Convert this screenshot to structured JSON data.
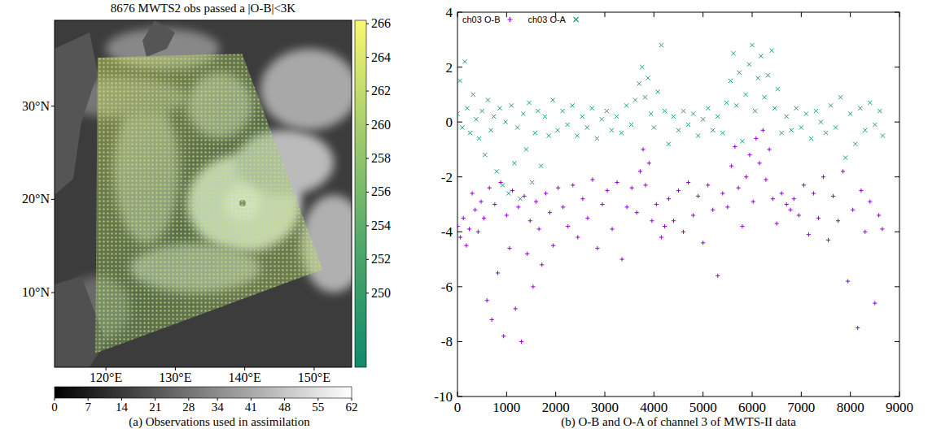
{
  "chart_data": [
    {
      "type": "map",
      "title": "8676 MWTS2 obs passed a |O-B|<3K",
      "caption": "(a) Observations used in assimilation",
      "xlim": [
        112.6,
        155.4
      ],
      "ylim": [
        2,
        39.2
      ],
      "xticks": [
        {
          "value": 120,
          "label": "120°E"
        },
        {
          "value": 130,
          "label": "130°E"
        },
        {
          "value": 140,
          "label": "140°E"
        },
        {
          "value": 150,
          "label": "150°E"
        }
      ],
      "yticks": [
        {
          "value": 10,
          "label": "10°N"
        },
        {
          "value": 20,
          "label": "20°N"
        },
        {
          "value": 30,
          "label": "30°N"
        }
      ],
      "swath": {
        "lon": [
          118.8,
          139.6,
          151.2,
          118.5
        ],
        "lat": [
          35.2,
          35.6,
          12.5,
          3.5
        ]
      },
      "colorbar": {
        "ylim": [
          245.6,
          266.2
        ],
        "yticks": [
          250,
          252,
          254,
          256,
          258,
          260,
          262,
          264,
          266
        ]
      },
      "image_colorbar": {
        "xlim": [
          0,
          62
        ],
        "xticks": [
          0,
          7,
          14,
          21,
          28,
          34,
          41,
          48,
          55,
          62
        ]
      }
    },
    {
      "type": "scatter",
      "caption": "(b) O-B and O-A of channel 3 of MWTS-II data",
      "xlim": [
        0,
        9000
      ],
      "ylim": [
        -10,
        4
      ],
      "xticks": [
        0,
        1000,
        2000,
        3000,
        4000,
        5000,
        6000,
        7000,
        8000,
        9000
      ],
      "yticks": [
        -10,
        -8,
        -6,
        -4,
        -2,
        0,
        2,
        4
      ],
      "legend": "upper left",
      "series": [
        {
          "name": "ch03 O-B",
          "color": "#9400d3",
          "marker": "plus",
          "x": [
            0,
            60,
            120,
            180,
            240,
            300,
            360,
            420,
            480,
            540,
            600,
            650,
            700,
            760,
            820,
            880,
            940,
            1000,
            1060,
            1120,
            1180,
            1240,
            1300,
            1360,
            1420,
            1480,
            1540,
            1600,
            1660,
            1720,
            1800,
            1880,
            1950,
            2050,
            2150,
            2250,
            2350,
            2450,
            2550,
            2650,
            2750,
            2850,
            2950,
            3050,
            3150,
            3250,
            3350,
            3450,
            3550,
            3650,
            3720,
            3780,
            3830,
            3900,
            3960,
            4050,
            4150,
            4220,
            4300,
            4400,
            4500,
            4600,
            4700,
            4800,
            4900,
            5000,
            5100,
            5200,
            5300,
            5400,
            5500,
            5580,
            5650,
            5720,
            5800,
            5880,
            5950,
            6020,
            6080,
            6150,
            6220,
            6280,
            6350,
            6420,
            6500,
            6600,
            6700,
            6780,
            6850,
            6950,
            7050,
            7150,
            7250,
            7350,
            7450,
            7550,
            7650,
            7750,
            7850,
            7950,
            8050,
            8150,
            8220,
            8300,
            8400,
            8500,
            8580,
            8650
          ],
          "values": [
            -3.8,
            -4.2,
            -3.5,
            -4.5,
            -3.9,
            -2.6,
            -3.2,
            -4.0,
            -2.9,
            -3.5,
            -6.5,
            -2.4,
            -7.2,
            -3.0,
            -5.5,
            -2.2,
            -7.8,
            -3.4,
            -4.6,
            -2.5,
            -6.8,
            -3.1,
            -8.0,
            -2.7,
            -4.8,
            -3.6,
            -6.0,
            -2.9,
            -3.9,
            -5.2,
            -2.6,
            -3.3,
            -4.5,
            -2.4,
            -3.1,
            -3.8,
            -2.3,
            -4.2,
            -2.8,
            -3.5,
            -2.1,
            -4.6,
            -3.0,
            -2.5,
            -3.9,
            -2.2,
            -5.0,
            -3.1,
            -2.4,
            -3.3,
            -1.8,
            -1.0,
            -2.3,
            -1.5,
            -3.6,
            -3.0,
            -4.2,
            -3.8,
            -2.8,
            -3.6,
            -2.5,
            -4.0,
            -2.2,
            -3.4,
            -2.7,
            -4.4,
            -2.3,
            -3.2,
            -5.6,
            -2.6,
            -3.1,
            -1.6,
            -0.9,
            -2.4,
            -3.8,
            -2.0,
            -1.2,
            -2.9,
            -0.6,
            -1.5,
            -0.3,
            -2.1,
            -1.0,
            -2.8,
            -3.7,
            -2.6,
            -3.0,
            -3.2,
            -2.8,
            -3.4,
            -2.3,
            -4.1,
            -2.6,
            -3.5,
            -2.0,
            -4.3,
            -2.7,
            -3.6,
            -1.8,
            -5.8,
            -3.2,
            -7.5,
            -2.5,
            -4.0,
            -2.9,
            -6.6,
            -3.4,
            -3.9
          ]
        },
        {
          "name": "ch03 O-A",
          "color": "#1a9e77",
          "marker": "x",
          "x": [
            0,
            50,
            100,
            150,
            200,
            260,
            320,
            380,
            440,
            500,
            560,
            620,
            680,
            740,
            800,
            860,
            920,
            980,
            1040,
            1100,
            1160,
            1220,
            1280,
            1340,
            1400,
            1460,
            1520,
            1580,
            1640,
            1700,
            1780,
            1860,
            1940,
            2040,
            2140,
            2240,
            2340,
            2440,
            2540,
            2640,
            2740,
            2840,
            2940,
            3040,
            3140,
            3240,
            3340,
            3440,
            3540,
            3620,
            3700,
            3760,
            3820,
            3880,
            3940,
            4000,
            4080,
            4150,
            4220,
            4300,
            4400,
            4500,
            4600,
            4700,
            4800,
            4900,
            5000,
            5100,
            5200,
            5300,
            5400,
            5480,
            5560,
            5620,
            5680,
            5740,
            5800,
            5870,
            5940,
            6000,
            6060,
            6120,
            6180,
            6250,
            6320,
            6400,
            6460,
            6520,
            6600,
            6700,
            6800,
            6900,
            7000,
            7100,
            7200,
            7300,
            7400,
            7500,
            7600,
            7700,
            7800,
            7900,
            8000,
            8100,
            8200,
            8300,
            8400,
            8500,
            8600,
            8660
          ],
          "values": [
            0.3,
            1.5,
            -0.2,
            2.2,
            0.5,
            -0.4,
            1.0,
            0.1,
            -0.6,
            0.4,
            -1.2,
            0.8,
            -0.3,
            0.2,
            -1.8,
            0.5,
            -2.3,
            0.0,
            -2.6,
            0.6,
            -1.5,
            -0.2,
            -2.8,
            0.3,
            -1.0,
            0.7,
            -2.2,
            -0.4,
            0.4,
            -1.6,
            0.2,
            -0.5,
            0.8,
            -0.3,
            0.4,
            -0.1,
            0.6,
            -0.5,
            0.2,
            -0.2,
            0.5,
            -0.6,
            0.1,
            0.4,
            -0.3,
            0.2,
            -0.4,
            0.6,
            -0.1,
            0.8,
            1.4,
            2.0,
            0.9,
            1.6,
            0.3,
            -0.2,
            1.1,
            2.8,
            0.4,
            -0.8,
            0.2,
            -0.3,
            0.4,
            -0.1,
            0.3,
            -0.5,
            0.1,
            0.5,
            -0.3,
            0.2,
            -0.4,
            0.7,
            1.5,
            2.5,
            0.6,
            1.8,
            -0.7,
            1.0,
            2.1,
            2.8,
            0.4,
            1.6,
            2.4,
            0.9,
            1.7,
            2.6,
            0.5,
            1.2,
            -0.4,
            0.2,
            -0.3,
            0.5,
            -0.2,
            0.3,
            -0.6,
            0.4,
            0.0,
            -0.4,
            0.6,
            -0.2,
            0.9,
            -1.3,
            0.3,
            -0.8,
            0.5,
            -0.3,
            0.7,
            -0.1,
            0.4,
            -0.5
          ]
        }
      ]
    }
  ]
}
